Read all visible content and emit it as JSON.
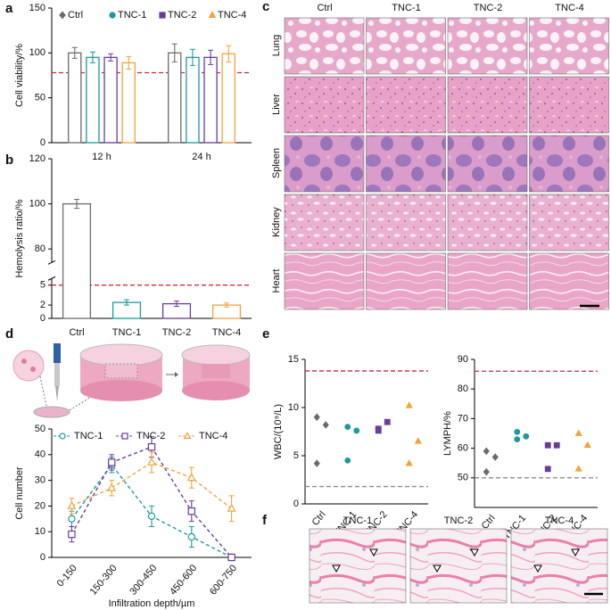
{
  "panel_labels": [
    "a",
    "b",
    "c",
    "d",
    "e",
    "f"
  ],
  "chart_data": [
    {
      "type": "bar",
      "ylabel": "Cell viability/%",
      "categories": [
        "12 h",
        "24 h"
      ],
      "ylim": [
        0,
        150
      ],
      "yticks": [
        0,
        50,
        100,
        150
      ],
      "legend": "top",
      "series": [
        {
          "name": "Ctrl",
          "color": "#6b6b6b",
          "marker": "diamond",
          "values": [
            100,
            100
          ],
          "errors": [
            6,
            10
          ]
        },
        {
          "name": "TNC-1",
          "color": "#1b9a9c",
          "marker": "circle",
          "values": [
            95,
            95
          ],
          "errors": [
            6,
            9
          ]
        },
        {
          "name": "TNC-2",
          "color": "#6a3d9a",
          "marker": "square",
          "values": [
            95,
            95
          ],
          "errors": [
            4,
            8
          ]
        },
        {
          "name": "TNC-4",
          "color": "#f2a33a",
          "marker": "triangle",
          "values": [
            89,
            99
          ],
          "errors": [
            7,
            9
          ]
        }
      ],
      "reference_lines": [
        {
          "value": 78,
          "color": "#d8283a"
        }
      ]
    },
    {
      "type": "bar",
      "ylabel": "Hemolysis ratio/%",
      "categories": [
        "Ctrl",
        "TNC-1",
        "TNC-2",
        "TNC-4"
      ],
      "values": [
        100,
        2.4,
        2.2,
        2.0
      ],
      "errors": [
        2,
        0.4,
        0.4,
        0.3
      ],
      "colors": [
        "#6b6b6b",
        "#1b9a9c",
        "#6a3d9a",
        "#f2a33a"
      ],
      "ylim": [
        0,
        120
      ],
      "ybreak": [
        6,
        74
      ],
      "yticks": [
        0,
        2,
        5,
        80,
        100,
        120
      ],
      "reference_lines": [
        {
          "value": 5,
          "color": "#d8283a"
        }
      ]
    },
    {
      "type": "line",
      "xlabel": "Infiltration depth/µm",
      "ylabel": "Cell number",
      "categories": [
        "0-150",
        "150-300",
        "300-450",
        "450-600",
        "600-750"
      ],
      "ylim": [
        0,
        50
      ],
      "yticks": [
        0,
        10,
        20,
        30,
        40,
        50
      ],
      "legend": "top",
      "series": [
        {
          "name": "TNC-1",
          "color": "#1b9a9c",
          "marker": "circle",
          "values": [
            15,
            36,
            16,
            8,
            0
          ],
          "errors": [
            3,
            3,
            4,
            4,
            0.5
          ]
        },
        {
          "name": "TNC-2",
          "color": "#6a3d9a",
          "marker": "square",
          "values": [
            9,
            37,
            43,
            18,
            0
          ],
          "errors": [
            3,
            3,
            4,
            4,
            0.5
          ]
        },
        {
          "name": "TNC-4",
          "color": "#f2a33a",
          "marker": "triangle",
          "values": [
            20,
            27,
            37,
            31,
            19
          ],
          "errors": [
            3,
            3,
            4,
            4,
            5
          ]
        }
      ]
    },
    {
      "type": "dot",
      "ylabel": "WBC/(10⁹/L)",
      "categories": [
        "Ctrl",
        "TNC-1",
        "TNC-2",
        "TNC-4"
      ],
      "values": [
        [
          9,
          8.2,
          4.2
        ],
        [
          8,
          7.6,
          4.5
        ],
        [
          7.8,
          8.5,
          7.6
        ],
        [
          10.2,
          6.5,
          4.2
        ]
      ],
      "colors": [
        "#6b6b6b",
        "#1b9a9c",
        "#6a3d9a",
        "#f2a33a"
      ],
      "markers": [
        "diamond",
        "circle",
        "square",
        "triangle"
      ],
      "ylim": [
        0,
        15
      ],
      "yticks": [
        0,
        5,
        10,
        15
      ],
      "reference_lines": [
        {
          "value": 13.8,
          "color": "#c8284a"
        },
        {
          "value": 1.8,
          "color": "#8c8c8c"
        }
      ]
    },
    {
      "type": "dot",
      "ylabel": "LYMPH/%",
      "categories": [
        "Ctrl",
        "TNC-1",
        "TNC-2",
        "TNC-4"
      ],
      "values": [
        [
          59,
          57,
          52
        ],
        [
          65.5,
          64,
          63
        ],
        [
          61,
          61,
          53
        ],
        [
          65,
          61,
          53
        ]
      ],
      "colors": [
        "#6b6b6b",
        "#1b9a9c",
        "#6a3d9a",
        "#f2a33a"
      ],
      "markers": [
        "diamond",
        "circle",
        "square",
        "triangle"
      ],
      "ylim": [
        40,
        90
      ],
      "yticks": [
        50,
        60,
        70,
        80,
        90
      ],
      "reference_lines": [
        {
          "value": 86,
          "color": "#c8284a"
        },
        {
          "value": 50,
          "color": "#8c8c8c"
        }
      ]
    }
  ],
  "histology": {
    "columns": [
      "Ctrl",
      "TNC-1",
      "TNC-2",
      "TNC-4"
    ],
    "rows": [
      "Lung",
      "Liver",
      "Spleen",
      "Kidney",
      "Heart"
    ]
  },
  "staining": {
    "labels": [
      "TNC-1",
      "TNC-2",
      "TNC-4"
    ]
  }
}
